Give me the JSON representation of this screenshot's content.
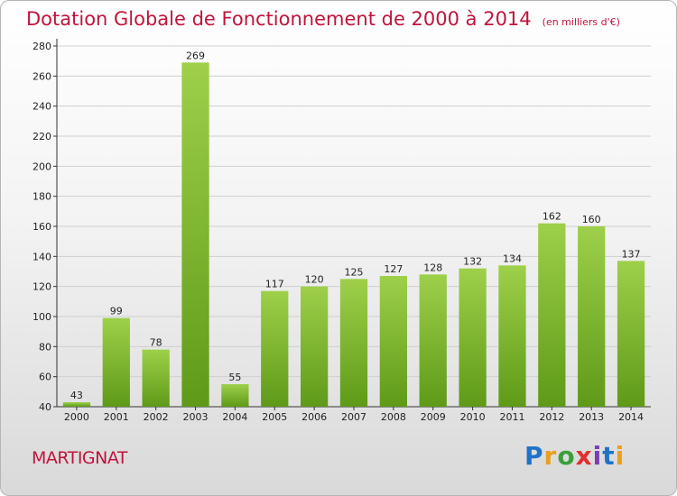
{
  "header": {
    "title": "Dotation Globale de Fonctionnement de 2000 à 2014",
    "subtitle": "(en milliers d'€)"
  },
  "footer": {
    "city": "MARTIGNAT",
    "logo": [
      "P",
      "r",
      "o",
      "x",
      "i",
      "t",
      "i"
    ],
    "logo_colors": [
      "#1e73c8",
      "#e8a020",
      "#3aa03a",
      "#e03030",
      "#7a3fb0",
      "#1e73c8",
      "#e8a020"
    ]
  },
  "chart_data": {
    "type": "bar",
    "title": "Dotation Globale de Fonctionnement de 2000 à 2014",
    "subtitle": "(en milliers d'€)",
    "categories": [
      "2000",
      "2001",
      "2002",
      "2003",
      "2004",
      "2005",
      "2006",
      "2007",
      "2008",
      "2009",
      "2010",
      "2011",
      "2012",
      "2013",
      "2014"
    ],
    "values": [
      43,
      99,
      78,
      269,
      55,
      117,
      120,
      125,
      127,
      128,
      132,
      134,
      162,
      160,
      137
    ],
    "ylim": [
      40,
      280
    ],
    "yticks": [
      40,
      60,
      80,
      100,
      120,
      140,
      160,
      180,
      200,
      220,
      240,
      260,
      280
    ],
    "grid": true,
    "bar_color": "#8cc63f",
    "bar_color_dark": "#5e9a18"
  }
}
